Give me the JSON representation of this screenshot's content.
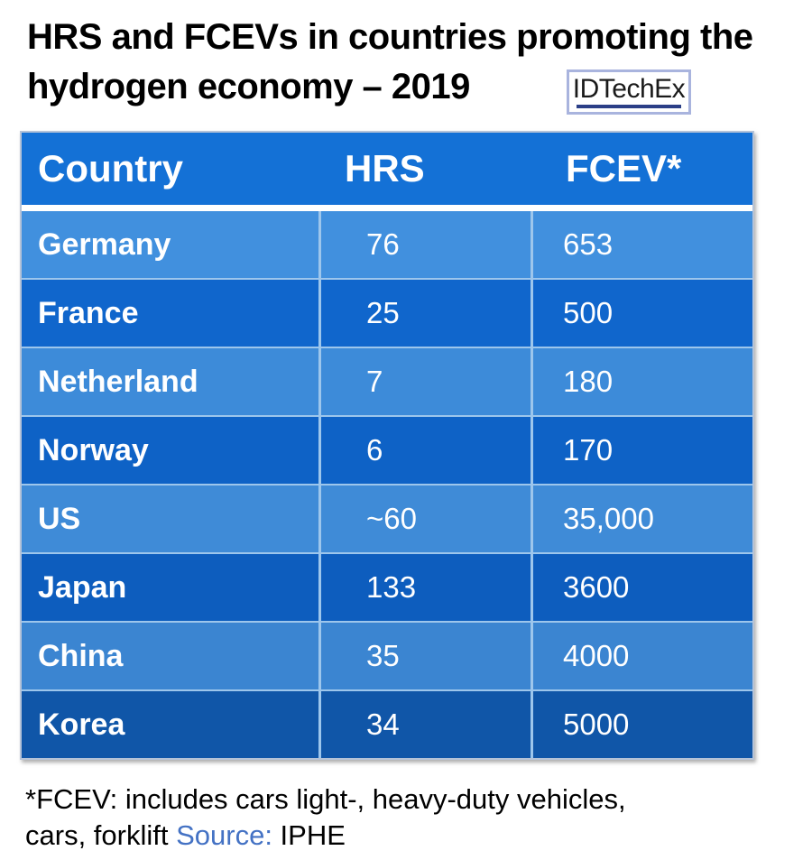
{
  "chart_data": {
    "type": "table",
    "title": "HRS and FCEVs in countries promoting the hydrogen economy – 2019",
    "columns": [
      "Country",
      "HRS",
      "FCEV*"
    ],
    "rows": [
      [
        "Germany",
        "76",
        "653"
      ],
      [
        "France",
        "25",
        "500"
      ],
      [
        "Netherland",
        "7",
        "180"
      ],
      [
        "Norway",
        "6",
        "170"
      ],
      [
        "US",
        "~60",
        "35,000"
      ],
      [
        "Japan",
        "133",
        "3600"
      ],
      [
        "China",
        "35",
        "4000"
      ],
      [
        "Korea",
        "34",
        "5000"
      ]
    ],
    "footnote": "*FCEV: includes cars light-, heavy-duty vehicles, cars, forklift",
    "source": "IPHE"
  },
  "header": {
    "title_line1": "HRS and FCEVs in countries promoting the",
    "title_line2": "hydrogen economy – 2019"
  },
  "logo": {
    "text": "IDTechEx"
  },
  "footnote": {
    "line1": "*FCEV: includes cars light-, heavy-duty vehicles,",
    "line2_prefix": "cars, forklift ",
    "source_label": "Source:",
    "source_value": " IPHE"
  },
  "styles": {
    "header_bg": "#1471D6",
    "row_colors": [
      "#4190DE",
      "#1066CC",
      "#3D8BD9",
      "#0E62C6",
      "#3F8BD7",
      "#0D5DBE",
      "#3B85D1",
      "#1056A8"
    ],
    "separator": "#9DC6EC",
    "source_color": "#4472C4",
    "logo_border": "#A9B4DE",
    "logo_underline": "#2B3F87"
  }
}
